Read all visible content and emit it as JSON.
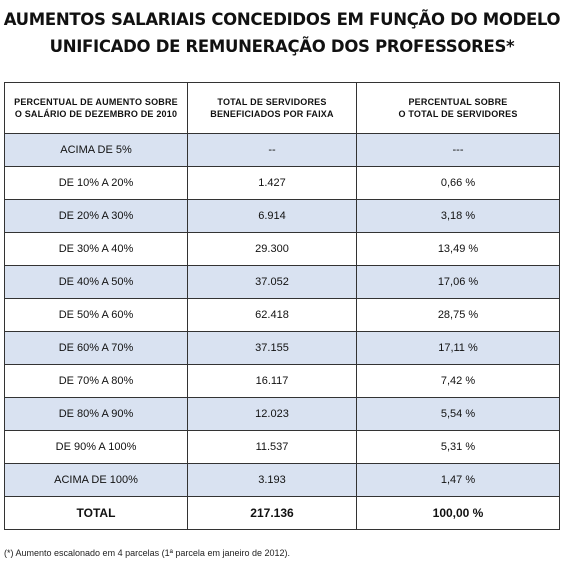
{
  "title": {
    "line1": "AUMENTOS SALARIAIS CONCEDIDOS EM FUNÇÃO DO MODELO",
    "line2": "UNIFICADO DE REMUNERAÇÃO DOS PROFESSORES*"
  },
  "table": {
    "headers": [
      {
        "line1": "PERCENTUAL DE AUMENTO SOBRE",
        "line2": "O SALÁRIO DE DEZEMBRO DE 2010"
      },
      {
        "line1": "TOTAL DE SERVIDORES",
        "line2": "BENEFICIADOS POR FAIXA"
      },
      {
        "line1": "PERCENTUAL SOBRE",
        "line2": "O TOTAL DE SERVIDORES"
      }
    ],
    "rows": [
      {
        "range": "ACIMA DE 5%",
        "count": "--",
        "percent": "---"
      },
      {
        "range": "DE 10% A 20%",
        "count": "1.427",
        "percent": "0,66 %"
      },
      {
        "range": "DE 20% A 30%",
        "count": "6.914",
        "percent": "3,18 %"
      },
      {
        "range": "DE 30% A 40%",
        "count": "29.300",
        "percent": "13,49 %"
      },
      {
        "range": "DE 40% A 50%",
        "count": "37.052",
        "percent": "17,06 %"
      },
      {
        "range": "DE 50% A 60%",
        "count": "62.418",
        "percent": "28,75 %"
      },
      {
        "range": "DE 60% A 70%",
        "count": "37.155",
        "percent": "17,11 %"
      },
      {
        "range": "DE 70% A 80%",
        "count": "16.117",
        "percent": "7,42 %"
      },
      {
        "range": "DE 80% A 90%",
        "count": "12.023",
        "percent": "5,54 %"
      },
      {
        "range": "DE 90% A 100%",
        "count": "11.537",
        "percent": "5,31 %"
      },
      {
        "range": "ACIMA DE 100%",
        "count": "3.193",
        "percent": "1,47 %"
      }
    ],
    "total": {
      "label": "TOTAL",
      "count": "217.136",
      "percent": "100,00 %"
    }
  },
  "footnote": "(*) Aumento escalonado em 4 parcelas (1ª parcela em janeiro de 2012).",
  "colors": {
    "row_shade": "#d9e2f1",
    "border": "#333333"
  }
}
